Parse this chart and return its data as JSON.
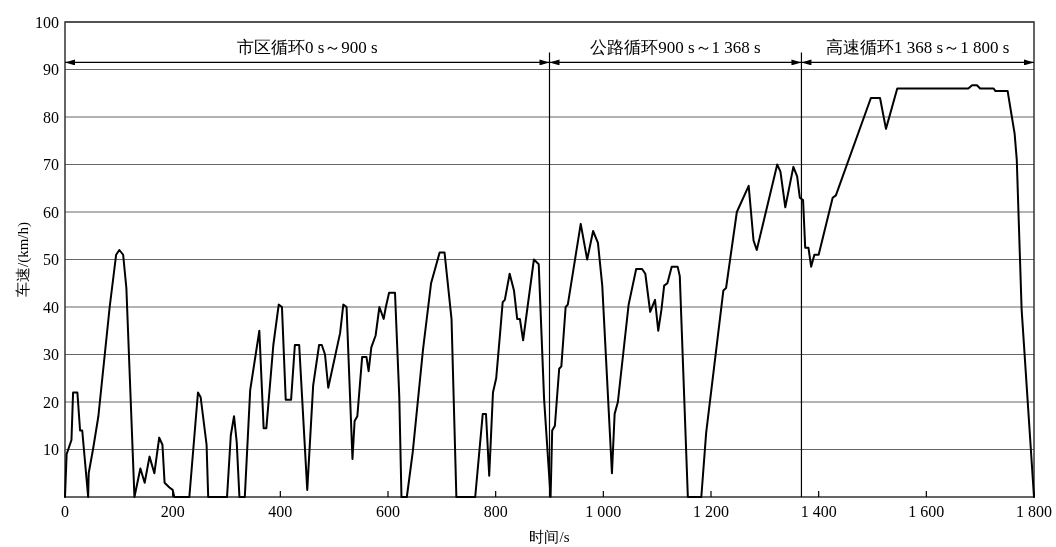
{
  "chart_data": {
    "type": "line",
    "xlabel": "时间/s",
    "ylabel": "车速/(km/h)",
    "color": "#000000",
    "line_style": "solid",
    "grid": "y",
    "xlim": [
      0,
      1800
    ],
    "ylim": [
      0,
      100
    ],
    "xticks": [
      0,
      200,
      400,
      600,
      800,
      {
        "value": 1000,
        "label": "1 000"
      },
      {
        "value": 1200,
        "label": "1 200"
      },
      {
        "value": 1400,
        "label": "1 400"
      },
      {
        "value": 1600,
        "label": "1 600"
      },
      {
        "value": 1800,
        "label": "1 800"
      }
    ],
    "yticks": [
      10,
      20,
      30,
      40,
      50,
      60,
      70,
      80,
      90,
      100
    ],
    "ref_lines": [
      {
        "axis": "x",
        "value": 900
      },
      {
        "axis": "x",
        "value": 1368
      }
    ],
    "annotations": [
      "市区循环0 s～900 s",
      "公路循环900 s～1 368 s",
      "高速循环1 368 s～1 800 s"
    ],
    "x": [
      0,
      3,
      12,
      15,
      23,
      28,
      32,
      43,
      44,
      52,
      62,
      83,
      95,
      101,
      108,
      114,
      129,
      140,
      148,
      157,
      166,
      175,
      181,
      185,
      194,
      200,
      203,
      231,
      247,
      252,
      263,
      266,
      301,
      308,
      314,
      319,
      324,
      334,
      344,
      361,
      369,
      374,
      387,
      397,
      403,
      410,
      420,
      427,
      435,
      450,
      461,
      472,
      477,
      483,
      489,
      511,
      517,
      523,
      534,
      538,
      543,
      552,
      560,
      564,
      569,
      577,
      584,
      592,
      596,
      602,
      613,
      621,
      625,
      635,
      646,
      665,
      680,
      696,
      705,
      718,
      727,
      762,
      776,
      782,
      788,
      795,
      801,
      809,
      813,
      817,
      826,
      834,
      840,
      845,
      851,
      871,
      880,
      890,
      902,
      905,
      910,
      918,
      922,
      930,
      934,
      958,
      970,
      981,
      990,
      998,
      1016,
      1021,
      1027,
      1047,
      1061,
      1072,
      1078,
      1087,
      1096,
      1102,
      1108,
      1113,
      1119,
      1127,
      1138,
      1142,
      1157,
      1182,
      1191,
      1223,
      1228,
      1248,
      1270,
      1279,
      1285,
      1323,
      1329,
      1338,
      1353,
      1360,
      1365,
      1371,
      1375,
      1381,
      1386,
      1392,
      1400,
      1426,
      1432,
      1497,
      1514,
      1525,
      1546,
      1678,
      1685,
      1694,
      1700,
      1725,
      1728,
      1751,
      1756,
      1764,
      1768,
      1777,
      1800
    ],
    "values": [
      0,
      9,
      12,
      22,
      22,
      14,
      14,
      0,
      5,
      10,
      17,
      40,
      51,
      52,
      51,
      44,
      0,
      6,
      3,
      8.5,
      5,
      12.5,
      11,
      3,
      2,
      1.5,
      0,
      0,
      22,
      21,
      11,
      0,
      0,
      13,
      17,
      11.5,
      0,
      0,
      22.5,
      35,
      14.5,
      14.5,
      32,
      40.5,
      40,
      20.5,
      20.5,
      32,
      32,
      1.5,
      23.5,
      32,
      32,
      30,
      23,
      34.5,
      40.5,
      40,
      8,
      16,
      17,
      29.5,
      29.5,
      26.5,
      31.5,
      34,
      40,
      37.5,
      40,
      43,
      43,
      21,
      0,
      0,
      9.5,
      31,
      45,
      51.5,
      51.5,
      37.5,
      0,
      0,
      17.5,
      17.5,
      4.5,
      22,
      25,
      35.5,
      41,
      41.5,
      47,
      43.5,
      37.5,
      37.5,
      33,
      50,
      49,
      20.5,
      0,
      14,
      15,
      27,
      27.5,
      40,
      40.5,
      57.5,
      50,
      56,
      53.5,
      44.5,
      5,
      17.5,
      20,
      40.5,
      48,
      48,
      47,
      39,
      41.5,
      35,
      39.5,
      44.5,
      45,
      48.5,
      48.5,
      46.5,
      0,
      0,
      13.5,
      43.5,
      44,
      60,
      65.5,
      54,
      52,
      70,
      68.5,
      61,
      69.5,
      67.5,
      63,
      62.5,
      52.5,
      52.5,
      48.5,
      51,
      51,
      63,
      63.5,
      84,
      84,
      77.5,
      86,
      86,
      86.7,
      86.7,
      86,
      86,
      85.5,
      85.5,
      82,
      76.5,
      71,
      39.5,
      0
    ]
  }
}
